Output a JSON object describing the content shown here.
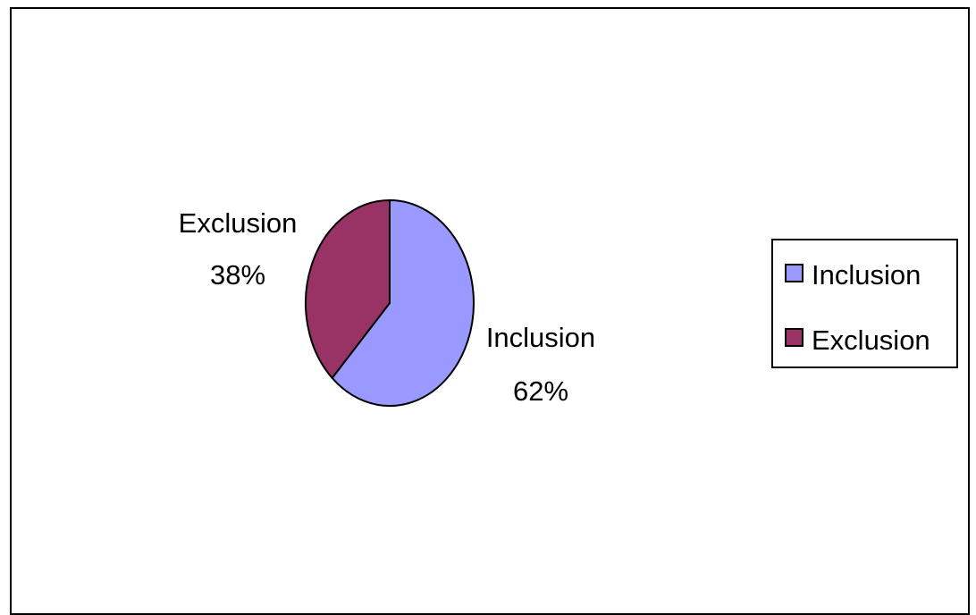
{
  "chart_data": {
    "type": "pie",
    "title": "",
    "slices": [
      {
        "label": "Inclusion",
        "value": 62,
        "percent_label": "62%",
        "color": "#9999FF"
      },
      {
        "label": "Exclusion",
        "value": 38,
        "percent_label": "38%",
        "color": "#993366"
      }
    ],
    "legend": {
      "placement": "right",
      "items": [
        "Inclusion",
        "Exclusion"
      ]
    },
    "start": "top",
    "direction": "clockwise"
  }
}
